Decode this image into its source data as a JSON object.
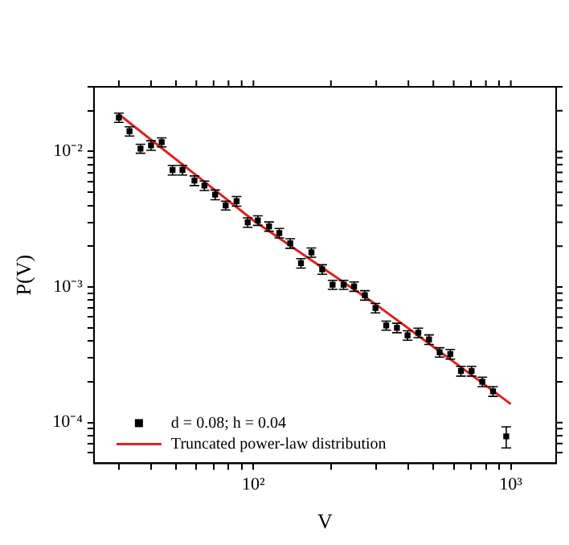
{
  "chart_data": {
    "type": "scatter",
    "xlabel": "V",
    "ylabel": "P(V)",
    "log": "xy",
    "grid": false,
    "legend": "bottom left",
    "xlim": [
      24,
      1500
    ],
    "ylim": [
      5e-05,
      0.03
    ],
    "xticks": [
      {
        "value": 30,
        "label": null
      },
      {
        "value": 40,
        "label": null
      },
      {
        "value": 50,
        "label": null
      },
      {
        "value": 60,
        "label": null
      },
      {
        "value": 70,
        "label": null
      },
      {
        "value": 80,
        "label": null
      },
      {
        "value": 90,
        "label": null
      },
      {
        "value": 100,
        "label": "10²"
      },
      {
        "value": 200,
        "label": null
      },
      {
        "value": 300,
        "label": null
      },
      {
        "value": 400,
        "label": null
      },
      {
        "value": 500,
        "label": null
      },
      {
        "value": 600,
        "label": null
      },
      {
        "value": 700,
        "label": null
      },
      {
        "value": 800,
        "label": null
      },
      {
        "value": 900,
        "label": null
      },
      {
        "value": 1000,
        "label": "10³"
      }
    ],
    "yticks": [
      {
        "value": 6e-05,
        "label": null
      },
      {
        "value": 7e-05,
        "label": null
      },
      {
        "value": 8e-05,
        "label": null
      },
      {
        "value": 9e-05,
        "label": null
      },
      {
        "value": 0.0001,
        "label": "10⁻⁴"
      },
      {
        "value": 0.0002,
        "label": null
      },
      {
        "value": 0.0003,
        "label": null
      },
      {
        "value": 0.0004,
        "label": null
      },
      {
        "value": 0.0005,
        "label": null
      },
      {
        "value": 0.0006,
        "label": null
      },
      {
        "value": 0.0007,
        "label": null
      },
      {
        "value": 0.0008,
        "label": null
      },
      {
        "value": 0.0009,
        "label": null
      },
      {
        "value": 0.001,
        "label": "10⁻³"
      },
      {
        "value": 0.002,
        "label": null
      },
      {
        "value": 0.003,
        "label": null
      },
      {
        "value": 0.004,
        "label": null
      },
      {
        "value": 0.005,
        "label": null
      },
      {
        "value": 0.006,
        "label": null
      },
      {
        "value": 0.007,
        "label": null
      },
      {
        "value": 0.008,
        "label": null
      },
      {
        "value": 0.009,
        "label": null
      },
      {
        "value": 0.01,
        "label": "10⁻²"
      },
      {
        "value": 0.02,
        "label": null
      },
      {
        "value": 0.03,
        "label": null
      }
    ],
    "series": [
      {
        "name": "d = 0.08; h = 0.04",
        "type": "scatter",
        "marker": "square",
        "color": "#000000",
        "x": [
          30,
          33,
          36.4,
          40,
          44,
          48.5,
          53,
          59,
          64.5,
          71,
          78,
          86,
          95,
          104,
          115,
          126,
          139,
          153,
          168,
          185,
          203,
          224,
          246,
          271,
          298,
          328,
          361,
          397,
          437,
          481,
          529,
          582,
          640,
          704,
          775,
          853,
          960
        ],
        "values": [
          0.0178,
          0.0141,
          0.0105,
          0.0111,
          0.0117,
          0.0073,
          0.0073,
          0.0061,
          0.0056,
          0.0048,
          0.004,
          0.0043,
          0.003,
          0.0031,
          0.0028,
          0.0025,
          0.0021,
          0.0015,
          0.0018,
          0.00135,
          0.00104,
          0.00104,
          0.00101,
          0.00087,
          0.0007,
          0.00052,
          0.0005,
          0.00044,
          0.00046,
          0.00041,
          0.00033,
          0.00032,
          0.00024,
          0.00024,
          0.0002,
          0.00017,
          7.9e-05
        ],
        "errors": [
          0.0014,
          0.0011,
          0.0008,
          0.0009,
          0.0009,
          0.0006,
          0.0006,
          0.0005,
          0.00045,
          0.0004,
          0.0003,
          0.00035,
          0.00024,
          0.00025,
          0.00022,
          0.0002,
          0.00017,
          0.00012,
          0.00014,
          0.00011,
          8e-05,
          8e-05,
          8e-05,
          7e-05,
          5.6e-05,
          4e-05,
          4e-05,
          3.5e-05,
          3.7e-05,
          3.3e-05,
          2.6e-05,
          2.6e-05,
          2e-05,
          2e-05,
          1.6e-05,
          1.4e-05,
          1.4e-05
        ]
      },
      {
        "name": "Truncated power-law distribution",
        "type": "line",
        "marker": "none",
        "line_style": "solid",
        "color": "#e02020",
        "x": [
          30,
          100,
          300,
          1000
        ],
        "values": [
          0.0188,
          0.0031,
          0.00074,
          0.000137
        ]
      }
    ]
  }
}
